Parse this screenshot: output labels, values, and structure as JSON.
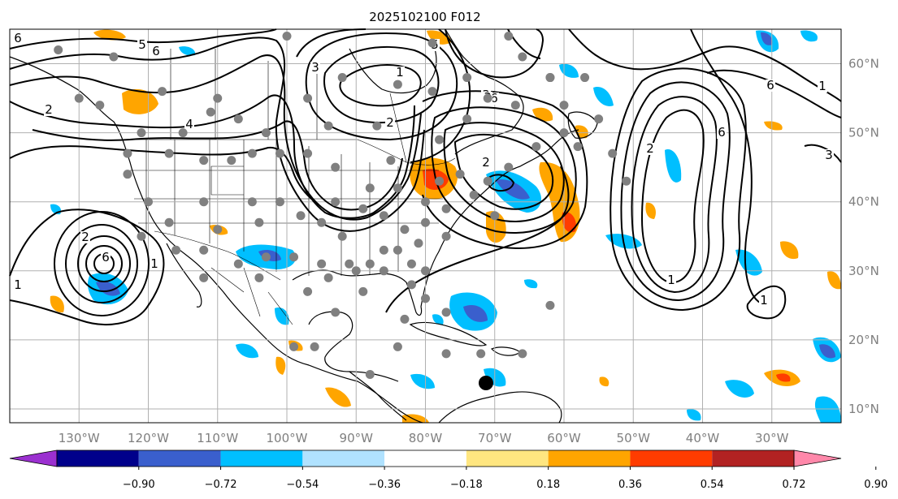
{
  "title": "2025102100 F012",
  "map": {
    "lon_range": [
      -140,
      -20
    ],
    "lat_range": [
      8,
      65
    ],
    "lon_ticks": [
      "130°W",
      "120°W",
      "110°W",
      "100°W",
      "90°W",
      "80°W",
      "70°W",
      "60°W",
      "50°W",
      "40°W",
      "30°W"
    ],
    "lon_values": [
      -130,
      -120,
      -110,
      -100,
      -90,
      -80,
      -70,
      -60,
      -50,
      -40,
      -30
    ],
    "lat_ticks": [
      "60°N",
      "50°N",
      "40°N",
      "30°N",
      "20°N",
      "10°N"
    ],
    "lat_values": [
      60,
      50,
      40,
      30,
      20,
      10
    ]
  },
  "colorbar": {
    "labels": [
      "−0.90",
      "−0.72",
      "−0.54",
      "−0.36",
      "−0.18",
      "0.18",
      "0.36",
      "0.54",
      "0.72",
      "0.90"
    ],
    "colors": [
      "#9b30d0",
      "#00008b",
      "#3a5fcd",
      "#00bfff",
      "#b0e2ff",
      "#ffffff",
      "#ffe680",
      "#ffa500",
      "#ff3c00",
      "#b22222",
      "#ff88aa"
    ]
  },
  "contour_labels": [
    "6",
    "5",
    "6",
    "1",
    "2",
    "3",
    "4",
    "6",
    "2",
    "1",
    "6",
    "3",
    "2",
    "1",
    "6",
    "5",
    "2",
    "3",
    "6",
    "1",
    "2",
    "1",
    "1",
    "3"
  ],
  "colors": {
    "gridline": "#b0b0b0",
    "station_dot": "#808080",
    "marker": "#000000"
  }
}
